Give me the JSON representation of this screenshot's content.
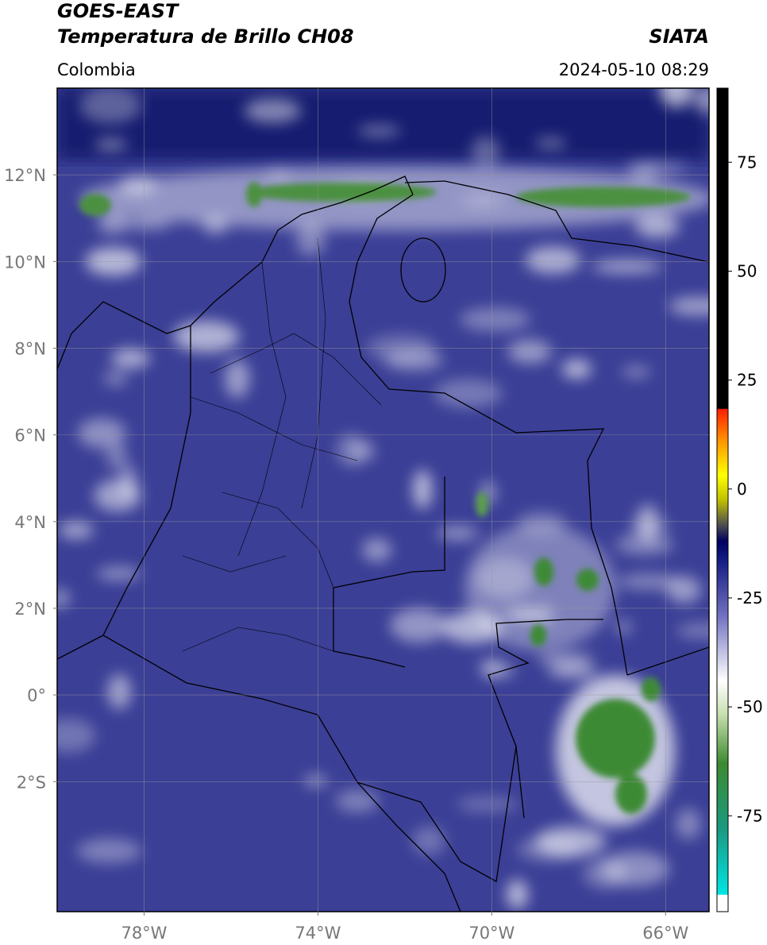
{
  "header": {
    "title": "GOES-EAST",
    "subtitle": "Temperatura de Brillo CH08",
    "region": "Colombia",
    "source": "SIATA",
    "datetime": "2024-05-10 08:29"
  },
  "map": {
    "xlim": [
      -80,
      -65
    ],
    "ylim": [
      -5,
      14
    ],
    "xticks": [
      {
        "value": -78,
        "label": "78°W"
      },
      {
        "value": -74,
        "label": "74°W"
      },
      {
        "value": -70,
        "label": "70°W"
      },
      {
        "value": -66,
        "label": "66°W"
      }
    ],
    "yticks": [
      {
        "value": -2,
        "label": "2°S"
      },
      {
        "value": 0,
        "label": "0°"
      },
      {
        "value": 2,
        "label": "2°N"
      },
      {
        "value": 4,
        "label": "4°N"
      },
      {
        "value": 6,
        "label": "6°N"
      },
      {
        "value": 8,
        "label": "8°N"
      },
      {
        "value": 10,
        "label": "10°N"
      },
      {
        "value": 12,
        "label": "12°N"
      }
    ],
    "grid": true
  },
  "colorbar": {
    "lim": [
      -97,
      92
    ],
    "ticks": [
      75,
      50,
      25,
      0,
      -25,
      -50,
      -75
    ]
  }
}
